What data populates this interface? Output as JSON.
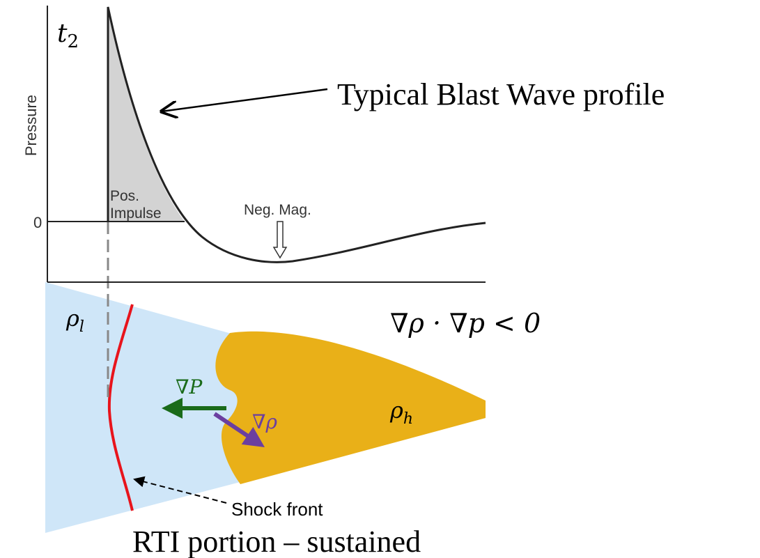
{
  "plot": {
    "time_label": {
      "base": "t",
      "sub": "2"
    },
    "y_axis_label": "Pressure",
    "zero_label": "0",
    "pos_impulse": [
      "Pos.",
      "Impulse"
    ],
    "neg_mag": "Neg. Mag.",
    "callout": "Typical Blast Wave profile"
  },
  "lower": {
    "rho_l": {
      "base": "ρ",
      "sub": "l"
    },
    "condition": "∇ρ · ∇p  < 0",
    "grad_p": "∇P",
    "grad_rho": "∇ρ",
    "rho_h": {
      "base": "ρ",
      "sub": "h"
    },
    "shock_front": "Shock front",
    "caption": "RTI portion – sustained"
  }
}
